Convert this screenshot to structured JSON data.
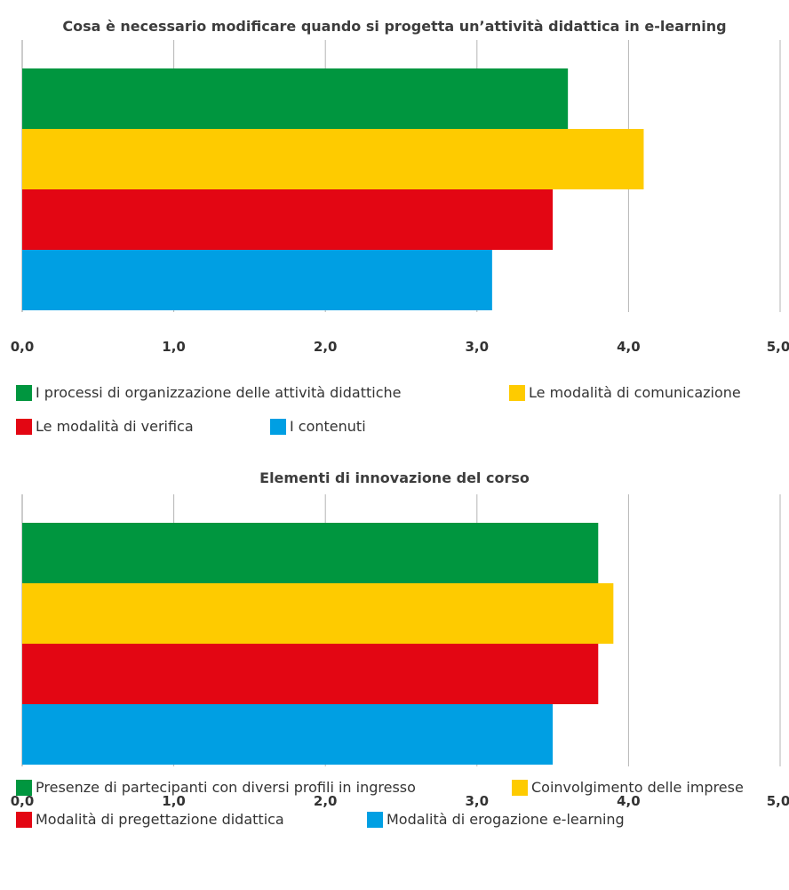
{
  "chart_data": [
    {
      "type": "bar",
      "orientation": "horizontal",
      "title": "Cosa è necessario modificare quando si progetta un’attività didattica in e-learning",
      "xlim": [
        0,
        5
      ],
      "xticks": [
        "0,0",
        "1,0",
        "2,0",
        "3,0",
        "4,0",
        "5,0"
      ],
      "grid": true,
      "legend_position": "bottom",
      "series": [
        {
          "name": "I processi di organizzazione delle attività didattiche",
          "value": 3.6,
          "color": "#00963f"
        },
        {
          "name": "Le modalità di comunicazione",
          "value": 4.1,
          "color": "#fecb00"
        },
        {
          "name": "Le modalità di verifica",
          "value": 3.5,
          "color": "#e30613"
        },
        {
          "name": "I contenuti",
          "value": 3.1,
          "color": "#009fe3"
        }
      ]
    },
    {
      "type": "bar",
      "orientation": "horizontal",
      "title": "Elementi di innovazione del corso",
      "xlim": [
        0,
        5
      ],
      "xticks": [
        "0,0",
        "1,0",
        "2,0",
        "3,0",
        "4,0",
        "5,0"
      ],
      "grid": true,
      "legend_position": "bottom",
      "series": [
        {
          "name": "Presenze di partecipanti con diversi profili in ingresso",
          "value": 3.8,
          "color": "#00963f"
        },
        {
          "name": "Coinvolgimento delle imprese",
          "value": 3.9,
          "color": "#fecb00"
        },
        {
          "name": "Modalità di pregettazione didattica",
          "value": 3.8,
          "color": "#e30613"
        },
        {
          "name": "Modalità di erogazione e-learning",
          "value": 3.5,
          "color": "#009fe3"
        }
      ]
    }
  ]
}
